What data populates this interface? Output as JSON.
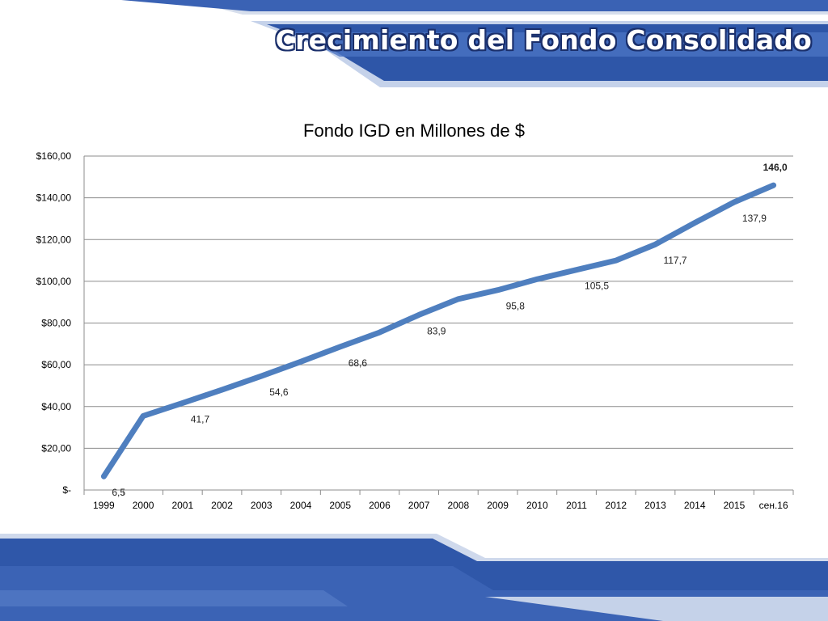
{
  "slide": {
    "title": "Crecimiento del Fondo Consolidado",
    "colors": {
      "band_dark": "#2b4f9e",
      "band_light": "#5b7fc7",
      "line": "#4f7fbf"
    }
  },
  "chart_data": {
    "type": "line",
    "title": "Fondo IGD en Millones de $",
    "categories": [
      "1999",
      "2000",
      "2001",
      "2002",
      "2003",
      "2004",
      "2005",
      "2006",
      "2007",
      "2008",
      "2009",
      "2010",
      "2011",
      "2012",
      "2013",
      "2014",
      "2015",
      "сен.16"
    ],
    "series": [
      {
        "values": [
          6.5,
          35.5,
          41.7,
          48,
          54.6,
          61.5,
          68.6,
          75.5,
          83.9,
          91.5,
          95.8,
          101,
          105.5,
          110,
          117.7,
          128,
          137.9,
          146.0
        ]
      }
    ],
    "data_labels": [
      {
        "index": 0,
        "text": "6,5"
      },
      {
        "index": 2,
        "text": "41,7"
      },
      {
        "index": 4,
        "text": "54,6"
      },
      {
        "index": 6,
        "text": "68,6"
      },
      {
        "index": 8,
        "text": "83,9"
      },
      {
        "index": 10,
        "text": "95,8"
      },
      {
        "index": 12,
        "text": "105,5"
      },
      {
        "index": 14,
        "text": "117,7"
      },
      {
        "index": 16,
        "text": "137,9"
      },
      {
        "index": 17,
        "text": "146,0",
        "bold": true
      }
    ],
    "yticks": [
      {
        "value": 0,
        "label": "$-"
      },
      {
        "value": 20,
        "label": "$20,00"
      },
      {
        "value": 40,
        "label": "$40,00"
      },
      {
        "value": 60,
        "label": "$60,00"
      },
      {
        "value": 80,
        "label": "$80,00"
      },
      {
        "value": 100,
        "label": "$100,00"
      },
      {
        "value": 120,
        "label": "$120,00"
      },
      {
        "value": 140,
        "label": "$140,00"
      },
      {
        "value": 160,
        "label": "$160,00"
      }
    ],
    "ylim": [
      0,
      160
    ],
    "grid": true,
    "legend": "none"
  }
}
